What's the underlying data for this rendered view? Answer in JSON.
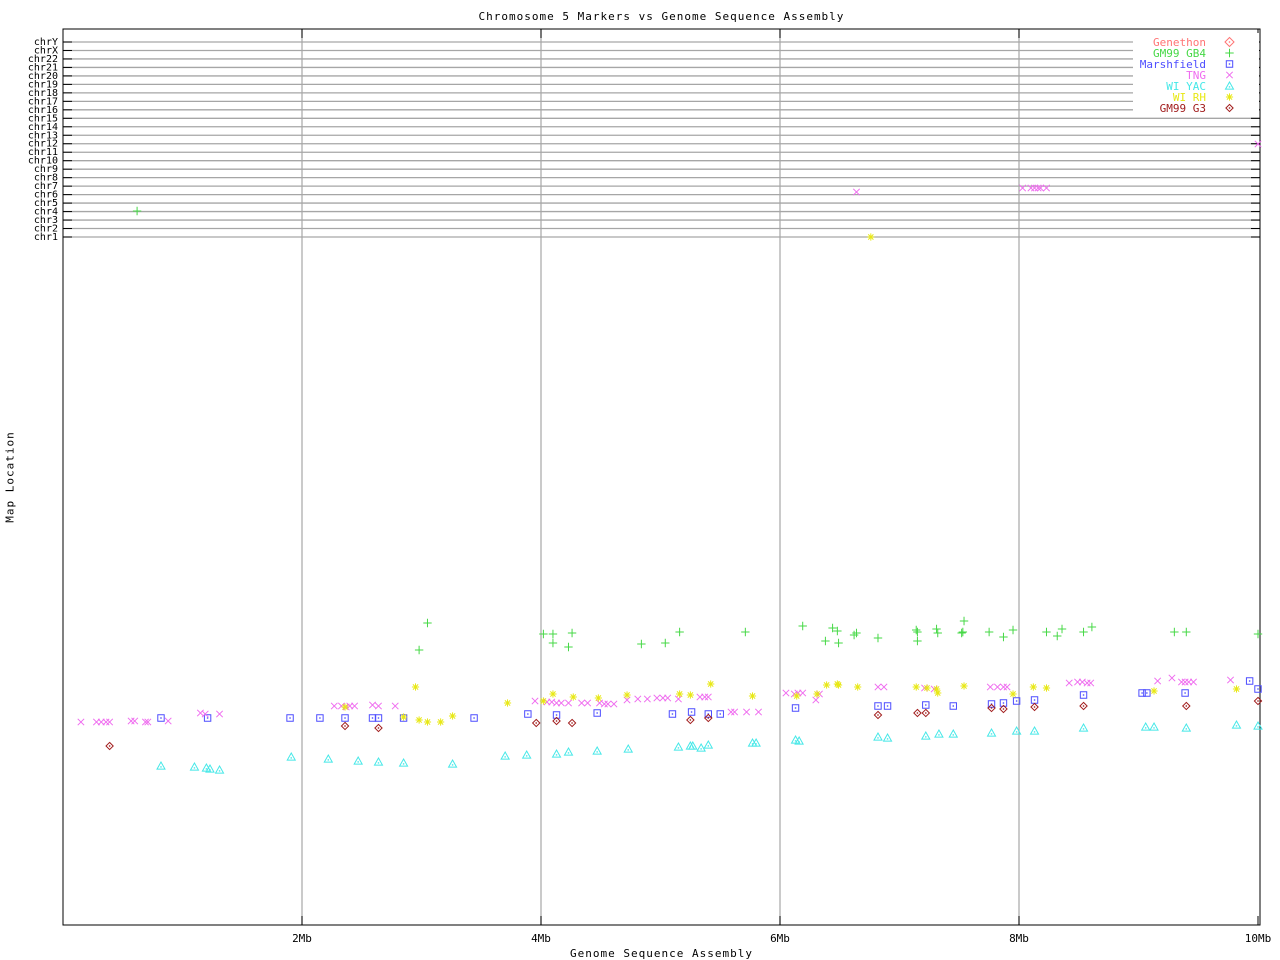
{
  "title": "Chromosome 5 Markers vs Genome Sequence Assembly",
  "axes": {
    "x": {
      "label": "Genome Sequence Assembly",
      "tick_labels": [
        "2Mb",
        "4Mb",
        "6Mb",
        "8Mb",
        "10Mb"
      ],
      "tick_values_mb": [
        2,
        4,
        6,
        8,
        10
      ],
      "range_mb": [
        0,
        10
      ]
    },
    "y": {
      "label": "Map Location",
      "tick_labels": [
        "chrY",
        "chrX",
        "chr22",
        "chr21",
        "chr20",
        "chr19",
        "chr18",
        "chr17",
        "chr16",
        "chr15",
        "chr14",
        "chr13",
        "chr12",
        "chr11",
        "chr10",
        "chr9",
        "chr8",
        "chr7",
        "chr6",
        "chr5",
        "chr4",
        "chr3",
        "chr2",
        "chr1"
      ]
    }
  },
  "colors": {
    "background": "#ffffff",
    "frame": "#000000",
    "grid": "#a6a6a6"
  },
  "chart_data": {
    "type": "scatter",
    "title": "Chromosome 5 Markers vs Genome Sequence Assembly",
    "xlabel": "Genome Sequence Assembly",
    "ylabel": "Map Location",
    "x_unit": "Mb",
    "x_range": [
      0,
      10
    ],
    "grid": true,
    "legend_position": "top-right",
    "y_note": "Original plot has no numeric y scale; y values below are vertical pixel rows measured from the top of the 960px image. Chromosome reference gridlines (chrY..chr1) span y=42..237; chromosome-5 marker cloud sits around y=620..770.",
    "series": [
      {
        "name": "Genethon",
        "marker": "diamond-dot",
        "color": "#ff7474",
        "points": []
      },
      {
        "name": "GM99 GB4",
        "marker": "plus",
        "color": "#46d846",
        "points": [
          [
            0.62,
            211
          ],
          [
            2.98,
            650
          ],
          [
            3.05,
            623
          ],
          [
            4.02,
            634
          ],
          [
            4.1,
            634
          ],
          [
            4.1,
            643
          ],
          [
            4.23,
            647
          ],
          [
            4.26,
            633
          ],
          [
            4.84,
            644
          ],
          [
            5.04,
            643
          ],
          [
            5.16,
            632
          ],
          [
            5.71,
            632
          ],
          [
            6.19,
            626
          ],
          [
            6.38,
            641
          ],
          [
            6.44,
            628
          ],
          [
            6.48,
            631
          ],
          [
            6.49,
            643
          ],
          [
            6.62,
            635
          ],
          [
            6.64,
            633
          ],
          [
            6.82,
            638
          ],
          [
            7.14,
            630
          ],
          [
            7.15,
            632
          ],
          [
            7.15,
            641
          ],
          [
            7.31,
            629
          ],
          [
            7.32,
            633
          ],
          [
            7.52,
            633
          ],
          [
            7.53,
            632
          ],
          [
            7.54,
            621
          ],
          [
            7.75,
            632
          ],
          [
            7.87,
            637
          ],
          [
            7.95,
            630
          ],
          [
            8.23,
            632
          ],
          [
            8.32,
            636
          ],
          [
            8.36,
            629
          ],
          [
            8.54,
            632
          ],
          [
            8.61,
            627
          ],
          [
            9.3,
            632
          ],
          [
            9.4,
            632
          ],
          [
            10,
            634
          ]
        ]
      },
      {
        "name": "Marshfield",
        "marker": "square-dot",
        "color": "#4d4dff",
        "points": [
          [
            0.82,
            718
          ],
          [
            1.21,
            718
          ],
          [
            1.9,
            718
          ],
          [
            2.15,
            718
          ],
          [
            2.36,
            718
          ],
          [
            2.59,
            718
          ],
          [
            2.64,
            718
          ],
          [
            2.85,
            718
          ],
          [
            3.44,
            718
          ],
          [
            3.89,
            714
          ],
          [
            4.13,
            715
          ],
          [
            4.47,
            713
          ],
          [
            5.1,
            714
          ],
          [
            5.26,
            712
          ],
          [
            5.4,
            714
          ],
          [
            5.5,
            714
          ],
          [
            6.13,
            708
          ],
          [
            6.82,
            706
          ],
          [
            6.9,
            706
          ],
          [
            7.22,
            705
          ],
          [
            7.45,
            706
          ],
          [
            7.77,
            704
          ],
          [
            7.87,
            703
          ],
          [
            7.98,
            701
          ],
          [
            8.13,
            700
          ],
          [
            8.54,
            695
          ],
          [
            9.03,
            693
          ],
          [
            9.07,
            693
          ],
          [
            9.39,
            693
          ],
          [
            9.93,
            681
          ],
          [
            10,
            689
          ]
        ]
      },
      {
        "name": "TNG",
        "marker": "cross",
        "color": "#ef6bef",
        "points": [
          [
            0.15,
            722
          ],
          [
            0.28,
            722
          ],
          [
            0.32,
            722
          ],
          [
            0.36,
            722
          ],
          [
            0.39,
            722
          ],
          [
            0.57,
            721
          ],
          [
            0.6,
            721
          ],
          [
            0.69,
            722
          ],
          [
            0.71,
            722
          ],
          [
            0.88,
            721
          ],
          [
            1.15,
            713
          ],
          [
            1.19,
            714
          ],
          [
            1.31,
            714
          ],
          [
            2.27,
            706
          ],
          [
            2.33,
            706
          ],
          [
            2.37,
            707
          ],
          [
            2.4,
            706
          ],
          [
            2.44,
            706
          ],
          [
            2.59,
            705
          ],
          [
            2.64,
            706
          ],
          [
            2.78,
            706
          ],
          [
            3.95,
            701
          ],
          [
            4.05,
            702
          ],
          [
            4.09,
            702
          ],
          [
            4.13,
            703
          ],
          [
            4.17,
            703
          ],
          [
            4.23,
            703
          ],
          [
            4.34,
            703
          ],
          [
            4.39,
            703
          ],
          [
            4.49,
            703
          ],
          [
            4.53,
            704
          ],
          [
            4.56,
            704
          ],
          [
            4.61,
            704
          ],
          [
            4.72,
            700
          ],
          [
            4.81,
            699
          ],
          [
            4.89,
            699
          ],
          [
            4.97,
            698
          ],
          [
            5.02,
            698
          ],
          [
            5.06,
            698
          ],
          [
            5.15,
            699
          ],
          [
            5.33,
            697
          ],
          [
            5.37,
            697
          ],
          [
            5.4,
            697
          ],
          [
            5.59,
            712
          ],
          [
            5.62,
            712
          ],
          [
            5.72,
            712
          ],
          [
            5.82,
            712
          ],
          [
            6.05,
            693
          ],
          [
            6.12,
            694
          ],
          [
            6.15,
            693
          ],
          [
            6.19,
            693
          ],
          [
            6.3,
            700
          ],
          [
            6.33,
            694
          ],
          [
            6.64,
            192
          ],
          [
            6.82,
            687
          ],
          [
            6.87,
            687
          ],
          [
            7.21,
            688
          ],
          [
            7.29,
            689
          ],
          [
            7.76,
            687
          ],
          [
            7.82,
            687
          ],
          [
            7.87,
            687
          ],
          [
            7.9,
            687
          ],
          [
            8.03,
            188
          ],
          [
            8.1,
            188
          ],
          [
            8.13,
            188
          ],
          [
            8.16,
            188
          ],
          [
            8.18,
            188
          ],
          [
            8.23,
            188
          ],
          [
            8.42,
            683
          ],
          [
            8.49,
            682
          ],
          [
            8.53,
            682
          ],
          [
            8.57,
            683
          ],
          [
            8.6,
            683
          ],
          [
            9.16,
            681
          ],
          [
            9.28,
            678
          ],
          [
            9.36,
            682
          ],
          [
            9.39,
            682
          ],
          [
            9.42,
            682
          ],
          [
            9.46,
            682
          ],
          [
            9.77,
            680
          ],
          [
            10,
            144
          ]
        ]
      },
      {
        "name": "WI YAC",
        "marker": "triangle-dot",
        "color": "#45e8e8",
        "points": [
          [
            0.82,
            766
          ],
          [
            1.1,
            767
          ],
          [
            1.2,
            768
          ],
          [
            1.23,
            769
          ],
          [
            1.31,
            770
          ],
          [
            1.91,
            757
          ],
          [
            2.22,
            759
          ],
          [
            2.47,
            761
          ],
          [
            2.64,
            762
          ],
          [
            2.85,
            763
          ],
          [
            3.26,
            764
          ],
          [
            3.7,
            756
          ],
          [
            3.88,
            755
          ],
          [
            4.13,
            754
          ],
          [
            4.23,
            752
          ],
          [
            4.47,
            751
          ],
          [
            4.73,
            749
          ],
          [
            5.15,
            747
          ],
          [
            5.25,
            746
          ],
          [
            5.27,
            746
          ],
          [
            5.34,
            748
          ],
          [
            5.4,
            745
          ],
          [
            5.77,
            743
          ],
          [
            5.8,
            743
          ],
          [
            6.13,
            740
          ],
          [
            6.16,
            741
          ],
          [
            6.82,
            737
          ],
          [
            6.9,
            738
          ],
          [
            7.22,
            736
          ],
          [
            7.33,
            734
          ],
          [
            7.45,
            734
          ],
          [
            7.77,
            733
          ],
          [
            7.98,
            731
          ],
          [
            8.13,
            731
          ],
          [
            8.54,
            728
          ],
          [
            9.06,
            727
          ],
          [
            9.13,
            727
          ],
          [
            9.4,
            728
          ],
          [
            9.82,
            725
          ],
          [
            10,
            726
          ]
        ]
      },
      {
        "name": "WI RH",
        "marker": "asterisk",
        "color": "#e8e815",
        "points": [
          [
            2.36,
            707
          ],
          [
            2.85,
            717
          ],
          [
            2.95,
            687
          ],
          [
            2.98,
            720
          ],
          [
            3.05,
            722
          ],
          [
            3.16,
            722
          ],
          [
            3.26,
            716
          ],
          [
            3.72,
            703
          ],
          [
            4.02,
            701
          ],
          [
            4.1,
            694
          ],
          [
            4.27,
            697
          ],
          [
            4.48,
            698
          ],
          [
            4.72,
            695
          ],
          [
            5.16,
            694
          ],
          [
            5.25,
            695
          ],
          [
            5.42,
            684
          ],
          [
            5.77,
            696
          ],
          [
            6.14,
            696
          ],
          [
            6.31,
            694
          ],
          [
            6.39,
            685
          ],
          [
            6.48,
            684
          ],
          [
            6.49,
            685
          ],
          [
            6.65,
            687
          ],
          [
            6.76,
            237
          ],
          [
            7.14,
            687
          ],
          [
            7.23,
            688
          ],
          [
            7.31,
            689
          ],
          [
            7.32,
            693
          ],
          [
            7.54,
            686
          ],
          [
            7.95,
            694
          ],
          [
            8.12,
            687
          ],
          [
            8.23,
            688
          ],
          [
            9.13,
            691
          ],
          [
            9.82,
            689
          ]
        ]
      },
      {
        "name": "GM99 G3",
        "marker": "diamond-dot",
        "color": "#a11c1c",
        "points": [
          [
            0.39,
            746
          ],
          [
            2.36,
            726
          ],
          [
            2.64,
            728
          ],
          [
            3.96,
            723
          ],
          [
            4.13,
            721
          ],
          [
            4.26,
            723
          ],
          [
            5.25,
            720
          ],
          [
            5.4,
            718
          ],
          [
            6.82,
            715
          ],
          [
            7.15,
            713
          ],
          [
            7.22,
            713
          ],
          [
            7.77,
            708
          ],
          [
            7.87,
            709
          ],
          [
            8.13,
            707
          ],
          [
            8.54,
            706
          ],
          [
            9.4,
            706
          ],
          [
            10,
            701
          ]
        ]
      }
    ]
  }
}
